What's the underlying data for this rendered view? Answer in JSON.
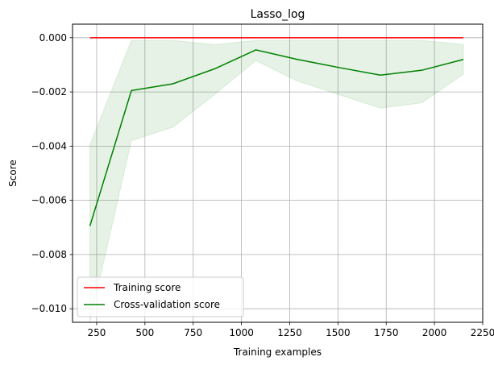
{
  "chart_data": {
    "type": "line",
    "title": "Lasso_log",
    "xlabel": "Training examples",
    "ylabel": "Score",
    "xlim": [
      125,
      2250
    ],
    "ylim": [
      -0.0105,
      0.0005
    ],
    "grid": true,
    "legend_position": "lower-left",
    "x_ticks": [
      250,
      500,
      750,
      1000,
      1250,
      1500,
      1750,
      2000,
      2250
    ],
    "x_tick_labels": [
      "250",
      "500",
      "750",
      "1000",
      "1250",
      "1500",
      "1750",
      "2000",
      "2250"
    ],
    "y_ticks": [
      0,
      -0.002,
      -0.004,
      -0.006,
      -0.008,
      -0.01
    ],
    "y_tick_labels": [
      "0.000",
      "−0.002",
      "−0.004",
      "−0.006",
      "−0.008",
      "−0.010"
    ],
    "x": [
      215,
      430,
      645,
      860,
      1075,
      1290,
      1505,
      1720,
      1935,
      2150
    ],
    "series": [
      {
        "name": "Training score",
        "color": "#ff0000",
        "values": [
          0,
          0,
          0,
          0,
          0,
          0,
          0,
          0,
          0,
          0
        ]
      },
      {
        "name": "Cross-validation score",
        "color": "#008000",
        "band_color": "#008000",
        "values": [
          -0.00695,
          -0.00195,
          -0.0017,
          -0.00115,
          -0.00045,
          -0.0008,
          -0.0011,
          -0.00138,
          -0.0012,
          -0.0008
        ],
        "band_upper": [
          -0.00395,
          -0.0001,
          -0.0001,
          -0.00025,
          -0.0001,
          -0.0001,
          -0.0001,
          -0.0001,
          -0.0001,
          -0.00025
        ],
        "band_lower": [
          -0.0105,
          -0.0038,
          -0.0033,
          -0.0021,
          -0.00085,
          -0.0016,
          -0.0021,
          -0.0026,
          -0.0024,
          -0.00135
        ]
      }
    ]
  }
}
